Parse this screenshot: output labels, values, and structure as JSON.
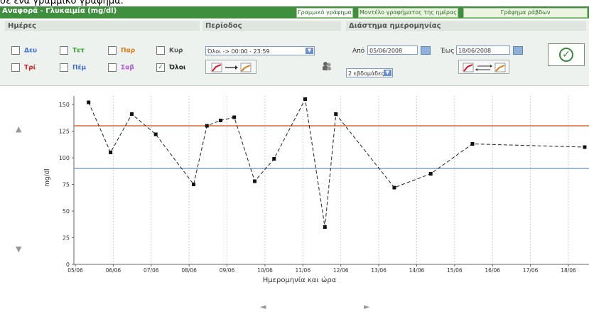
{
  "caption": "σε ένα γραμμικό γράφημα.",
  "titlebar": {
    "title": "Αναφορά - Γλυκαιμία (mg/dl)"
  },
  "tabs": [
    {
      "label": "Γραμμικό γράφημα",
      "active": true
    },
    {
      "label": "Μοντέλο γραφήματος της ημέρας",
      "active": false
    },
    {
      "label": "Γράφημα ράβδων",
      "active": false
    }
  ],
  "sections": {
    "days": "Ημέρες",
    "period": "Περίοδος",
    "range": "Διάστημα ημερομηνίας"
  },
  "days": [
    {
      "label": "Δευ",
      "color": "#3b6fd1",
      "checked": false
    },
    {
      "label": "Τετ",
      "color": "#2f9e2f",
      "checked": false
    },
    {
      "label": "Παρ",
      "color": "#e07a18",
      "checked": false
    },
    {
      "label": "Κυρ",
      "color": "#555555",
      "checked": false
    },
    {
      "label": "Τρί",
      "color": "#d42020",
      "checked": false
    },
    {
      "label": "Πέμ",
      "color": "#3b6fd1",
      "checked": false
    },
    {
      "label": "Σαβ",
      "color": "#b05cd6",
      "checked": false
    },
    {
      "label": "Όλοι",
      "color": "#222222",
      "checked": true
    }
  ],
  "period": {
    "select": "Όλοι -> 00:00 - 23:59",
    "weeks": "2 εβδομάδες"
  },
  "range": {
    "from_label": "Από",
    "from": "05/06/2008",
    "to_label": "Έως",
    "to": "18/06/2008"
  },
  "icons": {
    "ok": "check-icon",
    "up": "arrow-up-icon",
    "down": "arrow-down-icon",
    "left": "arrow-left-icon",
    "right": "arrow-right-icon"
  },
  "glyphs": {
    "up": "▲",
    "down": "▼",
    "left": "◄",
    "right": "►",
    "ok": "✓",
    "check": "✓",
    "combo": "▼"
  },
  "chart_data": {
    "type": "line",
    "xlabel": "Ημερομηνία και ώρα",
    "ylabel": "mg/dl",
    "ylim": [
      0,
      160
    ],
    "yticks": [
      0,
      25,
      50,
      75,
      100,
      125,
      150
    ],
    "xticks": [
      "05/06",
      "06/06",
      "07/06",
      "08/06",
      "09/06",
      "10/06",
      "11/06",
      "12/06",
      "13/06",
      "14/06",
      "15/06",
      "16/06",
      "17/06",
      "18/06"
    ],
    "reference_lines": [
      {
        "value": 130,
        "color": "#d9693a"
      },
      {
        "value": 90,
        "color": "#7f9fcf"
      }
    ],
    "grid": "vertical",
    "series": [
      {
        "points": [
          {
            "x": 0.35,
            "y": 152
          },
          {
            "x": 0.93,
            "y": 105
          },
          {
            "x": 1.49,
            "y": 141
          },
          {
            "x": 2.12,
            "y": 122
          },
          {
            "x": 3.12,
            "y": 75
          },
          {
            "x": 3.47,
            "y": 130
          },
          {
            "x": 3.83,
            "y": 135
          },
          {
            "x": 4.19,
            "y": 138
          },
          {
            "x": 4.73,
            "y": 78
          },
          {
            "x": 5.24,
            "y": 99
          },
          {
            "x": 6.06,
            "y": 155
          },
          {
            "x": 6.58,
            "y": 35
          },
          {
            "x": 6.87,
            "y": 141
          },
          {
            "x": 8.41,
            "y": 72
          },
          {
            "x": 9.37,
            "y": 85
          },
          {
            "x": 10.47,
            "y": 113
          },
          {
            "x": 13.43,
            "y": 110
          }
        ]
      }
    ]
  }
}
